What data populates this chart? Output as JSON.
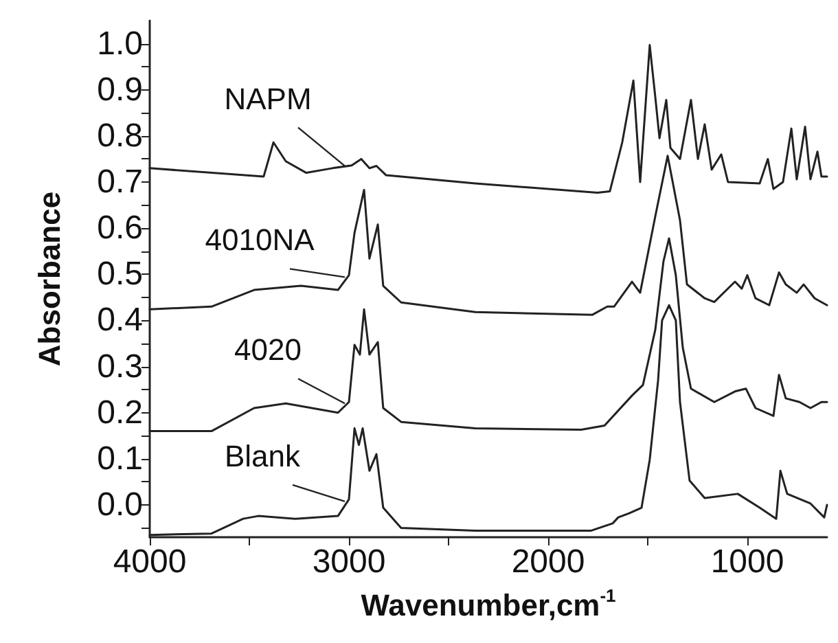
{
  "chart_data": {
    "type": "line",
    "xlabel": "Wavenumber,cm$^{-1}$",
    "ylabel": "Absorbance",
    "xlim": [
      4000,
      600
    ],
    "ylim": [
      -0.07,
      1.05
    ],
    "xticks": [
      4000,
      {
        "value": 3500,
        "label": null
      },
      3000,
      {
        "value": 2500,
        "label": null
      },
      2000,
      {
        "value": 1500,
        "label": null
      },
      1000
    ],
    "yticks": [
      {
        "value": -0.05,
        "label": null
      },
      {
        "value": 0,
        "label": "0.0"
      },
      {
        "value": 0.05,
        "label": null
      },
      {
        "value": 0.1,
        "label": "0.1"
      },
      {
        "value": 0.15,
        "label": null
      },
      {
        "value": 0.2,
        "label": "0.2"
      },
      {
        "value": 0.25,
        "label": null
      },
      {
        "value": 0.3,
        "label": "0.3"
      },
      {
        "value": 0.35,
        "label": null
      },
      {
        "value": 0.4,
        "label": "0.4"
      },
      {
        "value": 0.45,
        "label": null
      },
      {
        "value": 0.5,
        "label": "0.5"
      },
      {
        "value": 0.55,
        "label": null
      },
      {
        "value": 0.6,
        "label": "0.6"
      },
      {
        "value": 0.65,
        "label": null
      },
      {
        "value": 0.7,
        "label": "0.7"
      },
      {
        "value": 0.75,
        "label": null
      },
      {
        "value": 0.8,
        "label": "0.8"
      },
      {
        "value": 0.85,
        "label": null
      },
      {
        "value": 0.9,
        "label": "0.9"
      },
      {
        "value": 0.95,
        "label": null
      },
      {
        "value": 1.0,
        "label": "1.0"
      }
    ],
    "grid": false,
    "marker": "none",
    "line_style": "solid",
    "series": [
      {
        "name": "Blank",
        "color": "#222222",
        "x": [
          4000,
          3690,
          3531,
          3455,
          3269,
          3055,
          3000,
          2972,
          2950,
          2931,
          2897,
          2862,
          2828,
          2738,
          2366,
          1834,
          1786,
          1676,
          1648,
          1593,
          1531,
          1490,
          1448,
          1428,
          1393,
          1359,
          1338,
          1290,
          1214,
          1048,
          938,
          855,
          834,
          800,
          683,
          614,
          600
        ],
        "values": [
          -0.065,
          -0.062,
          -0.03,
          -0.024,
          -0.03,
          -0.024,
          0.012,
          0.166,
          0.13,
          0.166,
          0.074,
          0.11,
          -0.006,
          -0.05,
          -0.056,
          -0.056,
          -0.056,
          -0.04,
          -0.027,
          -0.018,
          -0.006,
          0.098,
          0.27,
          0.4,
          0.433,
          0.4,
          0.223,
          0.053,
          0.015,
          0.024,
          -0.006,
          -0.03,
          0.074,
          0.024,
          0.003,
          -0.027,
          0.0
        ]
      },
      {
        "name": "4020",
        "color": "#222222",
        "x": [
          4000,
          3690,
          3476,
          3317,
          3055,
          3000,
          2972,
          2945,
          2924,
          2897,
          2855,
          2828,
          2738,
          2366,
          1834,
          1717,
          1579,
          1524,
          1462,
          1421,
          1393,
          1359,
          1324,
          1283,
          1166,
          1062,
          1007,
          959,
          869,
          841,
          807,
          738,
          683,
          628,
          600
        ],
        "values": [
          0.16,
          0.16,
          0.21,
          0.22,
          0.2,
          0.223,
          0.347,
          0.326,
          0.424,
          0.326,
          0.353,
          0.21,
          0.18,
          0.166,
          0.163,
          0.172,
          0.237,
          0.26,
          0.38,
          0.528,
          0.578,
          0.498,
          0.341,
          0.252,
          0.223,
          0.246,
          0.252,
          0.21,
          0.193,
          0.282,
          0.231,
          0.223,
          0.21,
          0.223,
          0.223
        ]
      },
      {
        "name": "4010NA",
        "color": "#222222",
        "x": [
          4000,
          3690,
          3476,
          3241,
          3055,
          3000,
          2972,
          2924,
          2897,
          2855,
          2828,
          2738,
          2366,
          1779,
          1703,
          1669,
          1579,
          1538,
          1462,
          1400,
          1338,
          1303,
          1214,
          1166,
          1062,
          1028,
          1000,
          959,
          890,
          841,
          807,
          752,
          717,
          662,
          600
        ],
        "values": [
          0.424,
          0.43,
          0.466,
          0.475,
          0.466,
          0.498,
          0.59,
          0.683,
          0.534,
          0.608,
          0.475,
          0.439,
          0.418,
          0.412,
          0.43,
          0.43,
          0.484,
          0.46,
          0.626,
          0.757,
          0.617,
          0.478,
          0.448,
          0.44,
          0.484,
          0.469,
          0.498,
          0.448,
          0.433,
          0.504,
          0.478,
          0.46,
          0.478,
          0.448,
          0.433
        ]
      },
      {
        "name": "NAPM",
        "color": "#222222",
        "x": [
          4000,
          3428,
          3379,
          3317,
          3214,
          3083,
          2986,
          2938,
          2897,
          2862,
          2814,
          2366,
          1752,
          1690,
          1628,
          1572,
          1538,
          1490,
          1462,
          1441,
          1407,
          1386,
          1338,
          1283,
          1248,
          1214,
          1179,
          1131,
          1097,
          938,
          897,
          869,
          821,
          779,
          752,
          710,
          683,
          648,
          628,
          600
        ],
        "values": [
          0.73,
          0.712,
          0.786,
          0.745,
          0.72,
          0.73,
          0.736,
          0.75,
          0.73,
          0.735,
          0.715,
          0.697,
          0.677,
          0.68,
          0.786,
          0.92,
          0.7,
          0.997,
          0.884,
          0.795,
          0.878,
          0.774,
          0.75,
          0.878,
          0.75,
          0.825,
          0.727,
          0.76,
          0.7,
          0.697,
          0.75,
          0.685,
          0.7,
          0.816,
          0.706,
          0.82,
          0.706,
          0.766,
          0.712,
          0.712
        ]
      }
    ]
  }
}
